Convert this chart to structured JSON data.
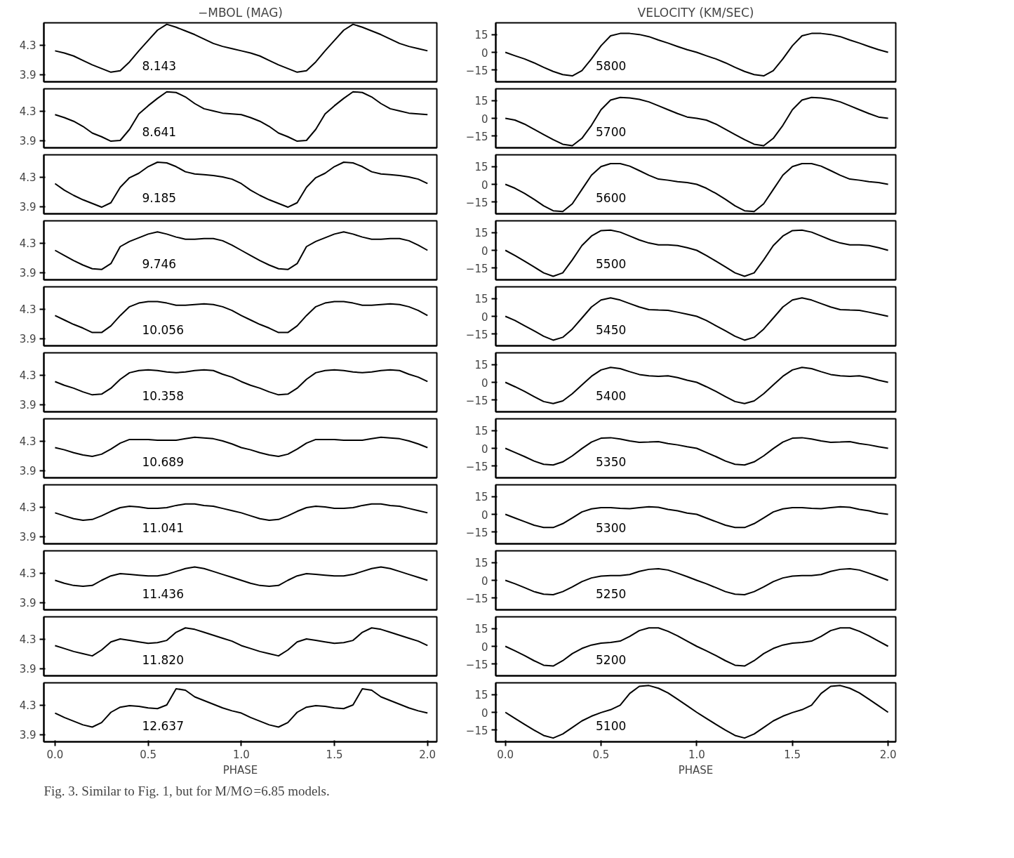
{
  "chart_data": [
    {
      "type": "line",
      "title": "−MBOL (MAG)",
      "x": [
        0,
        0.05,
        0.1,
        0.15,
        0.2,
        0.25,
        0.3,
        0.35,
        0.4,
        0.45,
        0.5,
        0.55,
        0.6,
        0.65,
        0.7,
        0.75,
        0.8,
        0.85,
        0.9,
        0.95,
        1,
        1.05,
        1.1,
        1.15,
        1.2,
        1.25,
        1.3,
        1.35,
        1.4,
        1.45,
        1.5,
        1.55,
        1.6,
        1.65,
        1.7,
        1.75,
        1.8,
        1.85,
        1.9,
        1.95,
        2
      ],
      "series": [
        {
          "name": "8.143",
          "color": "#000000",
          "values": [
            4.22,
            4.19,
            4.15,
            4.09,
            4.03,
            3.98,
            3.93,
            3.95,
            4.07,
            4.22,
            4.36,
            4.5,
            4.58,
            4.54,
            4.49,
            4.44,
            4.38,
            4.32,
            4.28,
            4.25,
            4.22,
            4.19,
            4.15,
            4.09,
            4.03,
            3.98,
            3.93,
            3.95,
            4.07,
            4.22,
            4.36,
            4.5,
            4.58,
            4.54,
            4.49,
            4.44,
            4.38,
            4.32,
            4.28,
            4.25,
            4.22
          ]
        }
      ],
      "xlim": [
        -0.06,
        2.05
      ],
      "ylim": [
        3.8,
        4.6
      ],
      "yticks": [
        3.9,
        4.3
      ],
      "tick_labels": "y"
    },
    {
      "type": "line",
      "x": [
        0,
        0.05,
        0.1,
        0.15,
        0.2,
        0.25,
        0.3,
        0.35,
        0.4,
        0.45,
        0.5,
        0.55,
        0.6,
        0.65,
        0.7,
        0.75,
        0.8,
        0.85,
        0.9,
        0.95,
        1,
        1.05,
        1.1,
        1.15,
        1.2,
        1.25,
        1.3,
        1.35,
        1.4,
        1.45,
        1.5,
        1.55,
        1.6,
        1.65,
        1.7,
        1.75,
        1.8,
        1.85,
        1.9,
        1.95,
        2
      ],
      "series": [
        {
          "name": "8.641",
          "color": "#000000",
          "values": [
            4.25,
            4.21,
            4.16,
            4.09,
            4.0,
            3.95,
            3.89,
            3.9,
            4.05,
            4.26,
            4.37,
            4.47,
            4.56,
            4.55,
            4.49,
            4.4,
            4.33,
            4.3,
            4.27,
            4.26,
            4.25,
            4.21,
            4.16,
            4.09,
            4.0,
            3.95,
            3.89,
            3.9,
            4.05,
            4.26,
            4.37,
            4.47,
            4.56,
            4.55,
            4.49,
            4.4,
            4.33,
            4.3,
            4.27,
            4.26,
            4.25
          ]
        }
      ],
      "xlim": [
        -0.06,
        2.05
      ],
      "ylim": [
        3.8,
        4.6
      ],
      "yticks": [
        3.9,
        4.3
      ],
      "tick_labels": "y"
    },
    {
      "type": "line",
      "x": [
        0,
        0.05,
        0.1,
        0.15,
        0.2,
        0.25,
        0.3,
        0.35,
        0.4,
        0.45,
        0.5,
        0.55,
        0.6,
        0.65,
        0.7,
        0.75,
        0.8,
        0.85,
        0.9,
        0.95,
        1,
        1.05,
        1.1,
        1.15,
        1.2,
        1.25,
        1.3,
        1.35,
        1.4,
        1.45,
        1.5,
        1.55,
        1.6,
        1.65,
        1.7,
        1.75,
        1.8,
        1.85,
        1.9,
        1.95,
        2
      ],
      "series": [
        {
          "name": "9.185",
          "color": "#000000",
          "values": [
            4.21,
            4.12,
            4.05,
            3.99,
            3.94,
            3.89,
            3.95,
            4.16,
            4.29,
            4.35,
            4.44,
            4.5,
            4.49,
            4.44,
            4.37,
            4.34,
            4.33,
            4.32,
            4.3,
            4.27,
            4.21,
            4.12,
            4.05,
            3.99,
            3.94,
            3.89,
            3.95,
            4.16,
            4.29,
            4.35,
            4.44,
            4.5,
            4.49,
            4.44,
            4.37,
            4.34,
            4.33,
            4.32,
            4.3,
            4.27,
            4.21
          ]
        }
      ],
      "xlim": [
        -0.06,
        2.05
      ],
      "ylim": [
        3.8,
        4.6
      ],
      "yticks": [
        3.9,
        4.3
      ],
      "tick_labels": "y"
    },
    {
      "type": "line",
      "x": [
        0,
        0.05,
        0.1,
        0.15,
        0.2,
        0.25,
        0.3,
        0.35,
        0.4,
        0.45,
        0.5,
        0.55,
        0.6,
        0.65,
        0.7,
        0.75,
        0.8,
        0.85,
        0.9,
        0.95,
        1,
        1.05,
        1.1,
        1.15,
        1.2,
        1.25,
        1.3,
        1.35,
        1.4,
        1.45,
        1.5,
        1.55,
        1.6,
        1.65,
        1.7,
        1.75,
        1.8,
        1.85,
        1.9,
        1.95,
        2
      ],
      "series": [
        {
          "name": "9.746",
          "color": "#000000",
          "values": [
            4.2,
            4.13,
            4.06,
            4.0,
            3.95,
            3.94,
            4.02,
            4.25,
            4.32,
            4.37,
            4.42,
            4.45,
            4.42,
            4.38,
            4.35,
            4.35,
            4.36,
            4.36,
            4.33,
            4.27,
            4.2,
            4.13,
            4.06,
            4.0,
            3.95,
            3.94,
            4.02,
            4.25,
            4.32,
            4.37,
            4.42,
            4.45,
            4.42,
            4.38,
            4.35,
            4.35,
            4.36,
            4.36,
            4.33,
            4.27,
            4.2
          ]
        }
      ],
      "xlim": [
        -0.06,
        2.05
      ],
      "ylim": [
        3.8,
        4.6
      ],
      "yticks": [
        3.9,
        4.3
      ],
      "tick_labels": "y"
    },
    {
      "type": "line",
      "x": [
        0,
        0.05,
        0.1,
        0.15,
        0.2,
        0.25,
        0.3,
        0.35,
        0.4,
        0.45,
        0.5,
        0.55,
        0.6,
        0.65,
        0.7,
        0.75,
        0.8,
        0.85,
        0.9,
        0.95,
        1,
        1.05,
        1.1,
        1.15,
        1.2,
        1.25,
        1.3,
        1.35,
        1.4,
        1.45,
        1.5,
        1.55,
        1.6,
        1.65,
        1.7,
        1.75,
        1.8,
        1.85,
        1.9,
        1.95,
        2
      ],
      "series": [
        {
          "name": "10.056",
          "color": "#000000",
          "values": [
            4.21,
            4.15,
            4.09,
            4.04,
            3.98,
            3.98,
            4.07,
            4.21,
            4.33,
            4.38,
            4.4,
            4.4,
            4.38,
            4.35,
            4.35,
            4.36,
            4.37,
            4.36,
            4.33,
            4.28,
            4.21,
            4.15,
            4.09,
            4.04,
            3.98,
            3.98,
            4.07,
            4.21,
            4.33,
            4.38,
            4.4,
            4.4,
            4.38,
            4.35,
            4.35,
            4.36,
            4.37,
            4.36,
            4.33,
            4.28,
            4.21
          ]
        }
      ],
      "xlim": [
        -0.06,
        2.05
      ],
      "ylim": [
        3.8,
        4.6
      ],
      "yticks": [
        3.9,
        4.3
      ],
      "tick_labels": "y"
    },
    {
      "type": "line",
      "x": [
        0,
        0.05,
        0.1,
        0.15,
        0.2,
        0.25,
        0.3,
        0.35,
        0.4,
        0.45,
        0.5,
        0.55,
        0.6,
        0.65,
        0.7,
        0.75,
        0.8,
        0.85,
        0.9,
        0.95,
        1,
        1.05,
        1.1,
        1.15,
        1.2,
        1.25,
        1.3,
        1.35,
        1.4,
        1.45,
        1.5,
        1.55,
        1.6,
        1.65,
        1.7,
        1.75,
        1.8,
        1.85,
        1.9,
        1.95,
        2
      ],
      "series": [
        {
          "name": "10.358",
          "color": "#000000",
          "values": [
            4.21,
            4.16,
            4.12,
            4.07,
            4.03,
            4.04,
            4.12,
            4.24,
            4.33,
            4.36,
            4.37,
            4.36,
            4.34,
            4.33,
            4.34,
            4.36,
            4.37,
            4.36,
            4.31,
            4.27,
            4.21,
            4.16,
            4.12,
            4.07,
            4.03,
            4.04,
            4.12,
            4.24,
            4.33,
            4.36,
            4.37,
            4.36,
            4.34,
            4.33,
            4.34,
            4.36,
            4.37,
            4.36,
            4.31,
            4.27,
            4.21
          ]
        }
      ],
      "xlim": [
        -0.06,
        2.05
      ],
      "ylim": [
        3.8,
        4.6
      ],
      "yticks": [
        3.9,
        4.3
      ],
      "tick_labels": "y"
    },
    {
      "type": "line",
      "x": [
        0,
        0.05,
        0.1,
        0.15,
        0.2,
        0.25,
        0.3,
        0.35,
        0.4,
        0.45,
        0.5,
        0.55,
        0.6,
        0.65,
        0.7,
        0.75,
        0.8,
        0.85,
        0.9,
        0.95,
        1,
        1.05,
        1.1,
        1.15,
        1.2,
        1.25,
        1.3,
        1.35,
        1.4,
        1.45,
        1.5,
        1.55,
        1.6,
        1.65,
        1.7,
        1.75,
        1.8,
        1.85,
        1.9,
        1.95,
        2
      ],
      "series": [
        {
          "name": "10.689",
          "color": "#000000",
          "values": [
            4.21,
            4.18,
            4.14,
            4.11,
            4.09,
            4.12,
            4.19,
            4.27,
            4.32,
            4.32,
            4.32,
            4.31,
            4.31,
            4.31,
            4.33,
            4.35,
            4.34,
            4.33,
            4.3,
            4.26,
            4.21,
            4.18,
            4.14,
            4.11,
            4.09,
            4.12,
            4.19,
            4.27,
            4.32,
            4.32,
            4.32,
            4.31,
            4.31,
            4.31,
            4.33,
            4.35,
            4.34,
            4.33,
            4.3,
            4.26,
            4.21
          ]
        }
      ],
      "xlim": [
        -0.06,
        2.05
      ],
      "ylim": [
        3.8,
        4.6
      ],
      "yticks": [
        3.9,
        4.3
      ],
      "tick_labels": "y"
    },
    {
      "type": "line",
      "x": [
        0,
        0.05,
        0.1,
        0.15,
        0.2,
        0.25,
        0.3,
        0.35,
        0.4,
        0.45,
        0.5,
        0.55,
        0.6,
        0.65,
        0.7,
        0.75,
        0.8,
        0.85,
        0.9,
        0.95,
        1,
        1.05,
        1.1,
        1.15,
        1.2,
        1.25,
        1.3,
        1.35,
        1.4,
        1.45,
        1.5,
        1.55,
        1.6,
        1.65,
        1.7,
        1.75,
        1.8,
        1.85,
        1.9,
        1.95,
        2
      ],
      "series": [
        {
          "name": "11.041",
          "color": "#000000",
          "values": [
            4.22,
            4.18,
            4.14,
            4.12,
            4.13,
            4.18,
            4.24,
            4.29,
            4.31,
            4.3,
            4.28,
            4.28,
            4.29,
            4.32,
            4.34,
            4.34,
            4.32,
            4.31,
            4.28,
            4.25,
            4.22,
            4.18,
            4.14,
            4.12,
            4.13,
            4.18,
            4.24,
            4.29,
            4.31,
            4.3,
            4.28,
            4.28,
            4.29,
            4.32,
            4.34,
            4.34,
            4.32,
            4.31,
            4.28,
            4.25,
            4.22
          ]
        }
      ],
      "xlim": [
        -0.06,
        2.05
      ],
      "ylim": [
        3.8,
        4.6
      ],
      "yticks": [
        3.9,
        4.3
      ],
      "tick_labels": "y"
    },
    {
      "type": "line",
      "x": [
        0,
        0.05,
        0.1,
        0.15,
        0.2,
        0.25,
        0.3,
        0.35,
        0.4,
        0.45,
        0.5,
        0.55,
        0.6,
        0.65,
        0.7,
        0.75,
        0.8,
        0.85,
        0.9,
        0.95,
        1,
        1.05,
        1.1,
        1.15,
        1.2,
        1.25,
        1.3,
        1.35,
        1.4,
        1.45,
        1.5,
        1.55,
        1.6,
        1.65,
        1.7,
        1.75,
        1.8,
        1.85,
        1.9,
        1.95,
        2
      ],
      "series": [
        {
          "name": "11.436",
          "color": "#000000",
          "values": [
            4.2,
            4.16,
            4.13,
            4.12,
            4.13,
            4.2,
            4.26,
            4.29,
            4.28,
            4.27,
            4.26,
            4.26,
            4.28,
            4.32,
            4.36,
            4.38,
            4.36,
            4.32,
            4.28,
            4.24,
            4.2,
            4.16,
            4.13,
            4.12,
            4.13,
            4.2,
            4.26,
            4.29,
            4.28,
            4.27,
            4.26,
            4.26,
            4.28,
            4.32,
            4.36,
            4.38,
            4.36,
            4.32,
            4.28,
            4.24,
            4.2
          ]
        }
      ],
      "xlim": [
        -0.06,
        2.05
      ],
      "ylim": [
        3.8,
        4.6
      ],
      "yticks": [
        3.9,
        4.3
      ],
      "tick_labels": "y"
    },
    {
      "type": "line",
      "x": [
        0,
        0.05,
        0.1,
        0.15,
        0.2,
        0.25,
        0.3,
        0.35,
        0.4,
        0.45,
        0.5,
        0.55,
        0.6,
        0.65,
        0.7,
        0.75,
        0.8,
        0.85,
        0.9,
        0.95,
        1,
        1.05,
        1.1,
        1.15,
        1.2,
        1.25,
        1.3,
        1.35,
        1.4,
        1.45,
        1.5,
        1.55,
        1.6,
        1.65,
        1.7,
        1.75,
        1.8,
        1.85,
        1.9,
        1.95,
        2
      ],
      "series": [
        {
          "name": "11.820",
          "color": "#000000",
          "values": [
            4.21,
            4.17,
            4.13,
            4.1,
            4.07,
            4.15,
            4.26,
            4.3,
            4.28,
            4.26,
            4.24,
            4.25,
            4.28,
            4.39,
            4.45,
            4.43,
            4.39,
            4.35,
            4.31,
            4.27,
            4.21,
            4.17,
            4.13,
            4.1,
            4.07,
            4.15,
            4.26,
            4.3,
            4.28,
            4.26,
            4.24,
            4.25,
            4.28,
            4.39,
            4.45,
            4.43,
            4.39,
            4.35,
            4.31,
            4.27,
            4.21
          ]
        }
      ],
      "xlim": [
        -0.06,
        2.05
      ],
      "ylim": [
        3.8,
        4.6
      ],
      "yticks": [
        3.9,
        4.3
      ],
      "tick_labels": "y"
    },
    {
      "type": "line",
      "xlabel": "PHASE",
      "annotations": [
        "Fig. 3. Similar to Fig. 1, but for M/M⊙=6.85 models."
      ],
      "x": [
        0,
        0.05,
        0.1,
        0.15,
        0.2,
        0.25,
        0.3,
        0.35,
        0.4,
        0.45,
        0.5,
        0.55,
        0.6,
        0.65,
        0.7,
        0.75,
        0.8,
        0.85,
        0.9,
        0.95,
        1,
        1.05,
        1.1,
        1.15,
        1.2,
        1.25,
        1.3,
        1.35,
        1.4,
        1.45,
        1.5,
        1.55,
        1.6,
        1.65,
        1.7,
        1.75,
        1.8,
        1.85,
        1.9,
        1.95,
        2
      ],
      "series": [
        {
          "name": "12.637",
          "color": "#000000",
          "values": [
            4.19,
            4.13,
            4.08,
            4.03,
            4.0,
            4.06,
            4.2,
            4.27,
            4.29,
            4.28,
            4.26,
            4.25,
            4.3,
            4.52,
            4.5,
            4.41,
            4.36,
            4.31,
            4.26,
            4.22,
            4.19,
            4.13,
            4.08,
            4.03,
            4.0,
            4.06,
            4.2,
            4.27,
            4.29,
            4.28,
            4.26,
            4.25,
            4.3,
            4.52,
            4.5,
            4.41,
            4.36,
            4.31,
            4.26,
            4.22,
            4.19
          ]
        }
      ],
      "xlim": [
        -0.06,
        2.05
      ],
      "xticks": [
        {
          "value": 0,
          "label": "0.0"
        },
        {
          "value": 0.5,
          "label": "0.5"
        },
        {
          "value": 1,
          "label": "1.0"
        },
        {
          "value": 1.5,
          "label": "1.5"
        },
        {
          "value": 2,
          "label": "2.0"
        }
      ],
      "ylim": [
        3.8,
        4.6
      ],
      "yticks": [
        3.9,
        4.3
      ]
    },
    {
      "type": "line",
      "title": "VELOCITY (KM/SEC)",
      "x": [
        0,
        0.05,
        0.1,
        0.15,
        0.2,
        0.25,
        0.3,
        0.35,
        0.4,
        0.45,
        0.5,
        0.55,
        0.6,
        0.65,
        0.7,
        0.75,
        0.8,
        0.85,
        0.9,
        0.95,
        1,
        1.05,
        1.1,
        1.15,
        1.2,
        1.25,
        1.3,
        1.35,
        1.4,
        1.45,
        1.5,
        1.55,
        1.6,
        1.65,
        1.7,
        1.75,
        1.8,
        1.85,
        1.9,
        1.95,
        2
      ],
      "series": [
        {
          "name": "5800",
          "color": "#000000",
          "values": [
            0,
            -2.9,
            -5.6,
            -8.9,
            -12.7,
            -16.2,
            -18.9,
            -20.0,
            -15.6,
            -5.6,
            5.6,
            14.0,
            16.0,
            16.0,
            15.1,
            13.3,
            10.4,
            7.8,
            4.9,
            2.2,
            0,
            -2.9,
            -5.6,
            -8.9,
            -12.7,
            -16.2,
            -18.9,
            -20.0,
            -15.6,
            -5.6,
            5.6,
            14.0,
            16.0,
            16.0,
            15.1,
            13.3,
            10.4,
            7.8,
            4.9,
            2.2,
            0
          ]
        }
      ],
      "xlim": [
        -0.05,
        2.04
      ],
      "ylim": [
        -25,
        25
      ],
      "yticks": [
        -15,
        0,
        15
      ],
      "tick_labels": "y"
    },
    {
      "type": "line",
      "x": [
        0,
        0.05,
        0.1,
        0.15,
        0.2,
        0.25,
        0.3,
        0.35,
        0.4,
        0.45,
        0.5,
        0.55,
        0.6,
        0.65,
        0.7,
        0.75,
        0.8,
        0.85,
        0.9,
        0.95,
        1,
        1.05,
        1.1,
        1.15,
        1.2,
        1.25,
        1.3,
        1.35,
        1.4,
        1.45,
        1.5,
        1.55,
        1.6,
        1.65,
        1.7,
        1.75,
        1.8,
        1.85,
        1.9,
        1.95,
        2
      ],
      "series": [
        {
          "name": "5700",
          "color": "#000000",
          "values": [
            0,
            -1.5,
            -4.9,
            -9.3,
            -13.7,
            -18.1,
            -22.0,
            -23.2,
            -17.0,
            -6.0,
            7.3,
            15.5,
            17.7,
            17.2,
            16.1,
            13.9,
            10.6,
            7.3,
            4.0,
            1.1,
            0,
            -1.5,
            -4.9,
            -9.3,
            -13.7,
            -18.1,
            -22.0,
            -23.2,
            -17.0,
            -6.0,
            7.3,
            15.5,
            17.7,
            17.2,
            16.1,
            13.9,
            10.6,
            7.3,
            4.0,
            1.1,
            0
          ]
        }
      ],
      "xlim": [
        -0.05,
        2.04
      ],
      "ylim": [
        -25,
        25
      ],
      "yticks": [
        -15,
        0,
        15
      ],
      "tick_labels": "y"
    },
    {
      "type": "line",
      "x": [
        0,
        0.05,
        0.1,
        0.15,
        0.2,
        0.25,
        0.3,
        0.35,
        0.4,
        0.45,
        0.5,
        0.55,
        0.6,
        0.65,
        0.7,
        0.75,
        0.8,
        0.85,
        0.9,
        0.95,
        1,
        1.05,
        1.1,
        1.15,
        1.2,
        1.25,
        1.3,
        1.35,
        1.4,
        1.45,
        1.5,
        1.55,
        1.6,
        1.65,
        1.7,
        1.75,
        1.8,
        1.85,
        1.9,
        1.95,
        2
      ],
      "series": [
        {
          "name": "5600",
          "color": "#000000",
          "values": [
            0,
            -3.3,
            -7.7,
            -12.7,
            -18.2,
            -22.4,
            -23.1,
            -16.5,
            -4.4,
            7.7,
            15.0,
            17.6,
            17.6,
            15.4,
            11.6,
            7.7,
            4.4,
            3.5,
            2.2,
            1.5,
            0,
            -3.3,
            -7.7,
            -12.7,
            -18.2,
            -22.4,
            -23.1,
            -16.5,
            -4.4,
            7.7,
            15.0,
            17.6,
            17.6,
            15.4,
            11.6,
            7.7,
            4.4,
            3.5,
            2.2,
            1.5,
            0
          ]
        }
      ],
      "xlim": [
        -0.05,
        2.04
      ],
      "ylim": [
        -25,
        25
      ],
      "yticks": [
        -15,
        0,
        15
      ],
      "tick_labels": "y"
    },
    {
      "type": "line",
      "x": [
        0,
        0.05,
        0.1,
        0.15,
        0.2,
        0.25,
        0.3,
        0.35,
        0.4,
        0.45,
        0.5,
        0.55,
        0.6,
        0.65,
        0.7,
        0.75,
        0.8,
        0.85,
        0.9,
        0.95,
        1,
        1.05,
        1.1,
        1.15,
        1.2,
        1.25,
        1.3,
        1.35,
        1.4,
        1.45,
        1.5,
        1.55,
        1.6,
        1.65,
        1.7,
        1.75,
        1.8,
        1.85,
        1.9,
        1.95,
        2
      ],
      "series": [
        {
          "name": "5500",
          "color": "#000000",
          "values": [
            0,
            -4.4,
            -9.2,
            -14.1,
            -19.1,
            -22.0,
            -19.1,
            -8.1,
            4.0,
            12.1,
            16.7,
            17.1,
            15.4,
            12.1,
            8.8,
            6.2,
            4.6,
            4.6,
            4.0,
            2.2,
            0,
            -4.4,
            -9.2,
            -14.1,
            -19.1,
            -22.0,
            -19.1,
            -8.1,
            4.0,
            12.1,
            16.7,
            17.1,
            15.4,
            12.1,
            8.8,
            6.2,
            4.6,
            4.6,
            4.0,
            2.2,
            0
          ]
        }
      ],
      "xlim": [
        -0.05,
        2.04
      ],
      "ylim": [
        -25,
        25
      ],
      "yticks": [
        -15,
        0,
        15
      ],
      "tick_labels": "y"
    },
    {
      "type": "line",
      "x": [
        0,
        0.05,
        0.1,
        0.15,
        0.2,
        0.25,
        0.3,
        0.35,
        0.4,
        0.45,
        0.5,
        0.55,
        0.6,
        0.65,
        0.7,
        0.75,
        0.8,
        0.85,
        0.9,
        0.95,
        1,
        1.05,
        1.1,
        1.15,
        1.2,
        1.25,
        1.3,
        1.35,
        1.4,
        1.45,
        1.5,
        1.55,
        1.6,
        1.65,
        1.7,
        1.75,
        1.8,
        1.85,
        1.9,
        1.95,
        2
      ],
      "series": [
        {
          "name": "5450",
          "color": "#000000",
          "values": [
            0,
            -3.5,
            -7.9,
            -12.3,
            -16.9,
            -20.2,
            -17.8,
            -10.8,
            -1.5,
            7.9,
            13.8,
            15.6,
            13.8,
            10.8,
            7.9,
            5.7,
            5.3,
            5.1,
            3.5,
            1.8,
            0,
            -3.5,
            -7.9,
            -12.3,
            -16.9,
            -20.2,
            -17.8,
            -10.8,
            -1.5,
            7.9,
            13.8,
            15.6,
            13.8,
            10.8,
            7.9,
            5.7,
            5.3,
            5.1,
            3.5,
            1.8,
            0
          ]
        }
      ],
      "xlim": [
        -0.05,
        2.04
      ],
      "ylim": [
        -25,
        25
      ],
      "yticks": [
        -15,
        0,
        15
      ],
      "tick_labels": "y"
    },
    {
      "type": "line",
      "x": [
        0,
        0.05,
        0.1,
        0.15,
        0.2,
        0.25,
        0.3,
        0.35,
        0.4,
        0.45,
        0.5,
        0.55,
        0.6,
        0.65,
        0.7,
        0.75,
        0.8,
        0.85,
        0.9,
        0.95,
        1,
        1.05,
        1.1,
        1.15,
        1.2,
        1.25,
        1.3,
        1.35,
        1.4,
        1.45,
        1.5,
        1.55,
        1.6,
        1.65,
        1.7,
        1.75,
        1.8,
        1.85,
        1.9,
        1.95,
        2
      ],
      "series": [
        {
          "name": "5400",
          "color": "#000000",
          "values": [
            0,
            -3.7,
            -7.7,
            -12.1,
            -16.3,
            -18.0,
            -15.8,
            -9.7,
            -2.2,
            5.1,
            10.5,
            12.7,
            11.6,
            9.0,
            6.6,
            5.5,
            5.1,
            5.5,
            4.0,
            1.8,
            0,
            -3.7,
            -7.7,
            -12.1,
            -16.3,
            -18.0,
            -15.8,
            -9.7,
            -2.2,
            5.1,
            10.5,
            12.7,
            11.6,
            9.0,
            6.6,
            5.5,
            5.1,
            5.5,
            4.0,
            1.8,
            0
          ]
        }
      ],
      "xlim": [
        -0.05,
        2.04
      ],
      "ylim": [
        -25,
        25
      ],
      "yticks": [
        -15,
        0,
        15
      ],
      "tick_labels": "y"
    },
    {
      "type": "line",
      "x": [
        0,
        0.05,
        0.1,
        0.15,
        0.2,
        0.25,
        0.3,
        0.35,
        0.4,
        0.45,
        0.5,
        0.55,
        0.6,
        0.65,
        0.7,
        0.75,
        0.8,
        0.85,
        0.9,
        0.95,
        1,
        1.05,
        1.1,
        1.15,
        1.2,
        1.25,
        1.3,
        1.35,
        1.4,
        1.45,
        1.5,
        1.55,
        1.6,
        1.65,
        1.7,
        1.75,
        1.8,
        1.85,
        1.9,
        1.95,
        2
      ],
      "series": [
        {
          "name": "5350",
          "color": "#000000",
          "values": [
            0,
            -3.5,
            -7.0,
            -10.8,
            -13.5,
            -14.1,
            -11.5,
            -6.4,
            -0.2,
            5.3,
            8.6,
            9.0,
            7.9,
            6.2,
            5.1,
            5.3,
            5.7,
            4.0,
            2.9,
            1.3,
            0,
            -3.5,
            -7.0,
            -10.8,
            -13.5,
            -14.1,
            -11.5,
            -6.4,
            -0.2,
            5.3,
            8.6,
            9.0,
            7.9,
            6.2,
            5.1,
            5.3,
            5.7,
            4.0,
            2.9,
            1.3,
            0
          ]
        }
      ],
      "xlim": [
        -0.05,
        2.04
      ],
      "ylim": [
        -25,
        25
      ],
      "yticks": [
        -15,
        0,
        15
      ],
      "tick_labels": "y"
    },
    {
      "type": "line",
      "x": [
        0,
        0.05,
        0.1,
        0.15,
        0.2,
        0.25,
        0.3,
        0.35,
        0.4,
        0.45,
        0.5,
        0.55,
        0.6,
        0.65,
        0.7,
        0.75,
        0.8,
        0.85,
        0.9,
        0.95,
        1,
        1.05,
        1.1,
        1.15,
        1.2,
        1.25,
        1.3,
        1.35,
        1.4,
        1.45,
        1.5,
        1.55,
        1.6,
        1.65,
        1.7,
        1.75,
        1.8,
        1.85,
        1.9,
        1.95,
        2
      ],
      "series": [
        {
          "name": "5300",
          "color": "#000000",
          "values": [
            0,
            -3.1,
            -6.2,
            -9.2,
            -11.2,
            -11.2,
            -7.9,
            -3.1,
            2.0,
            4.6,
            5.7,
            5.7,
            5.1,
            4.8,
            5.7,
            6.4,
            5.9,
            4.2,
            3.0,
            1.0,
            0,
            -3.1,
            -6.2,
            -9.2,
            -11.2,
            -11.2,
            -7.9,
            -3.1,
            2.0,
            4.6,
            5.7,
            5.7,
            5.1,
            4.8,
            5.7,
            6.4,
            5.9,
            4.2,
            3.0,
            1.0,
            0
          ]
        }
      ],
      "xlim": [
        -0.05,
        2.04
      ],
      "ylim": [
        -25,
        25
      ],
      "yticks": [
        -15,
        0,
        15
      ],
      "tick_labels": "y"
    },
    {
      "type": "line",
      "x": [
        0,
        0.05,
        0.1,
        0.15,
        0.2,
        0.25,
        0.3,
        0.35,
        0.4,
        0.45,
        0.5,
        0.55,
        0.6,
        0.65,
        0.7,
        0.75,
        0.8,
        0.85,
        0.9,
        0.95,
        1,
        1.05,
        1.1,
        1.15,
        1.2,
        1.25,
        1.3,
        1.35,
        1.4,
        1.45,
        1.5,
        1.55,
        1.6,
        1.65,
        1.7,
        1.75,
        1.8,
        1.85,
        1.9,
        1.95,
        2
      ],
      "series": [
        {
          "name": "5250",
          "color": "#000000",
          "values": [
            0,
            -2.9,
            -6.2,
            -9.6,
            -11.8,
            -12.2,
            -9.6,
            -5.6,
            -1.1,
            2.0,
            3.6,
            4.0,
            4.0,
            4.9,
            7.6,
            9.3,
            9.8,
            8.7,
            6.0,
            3.1,
            0,
            -2.9,
            -6.2,
            -9.6,
            -11.8,
            -12.2,
            -9.6,
            -5.6,
            -1.1,
            2.0,
            3.6,
            4.0,
            4.0,
            4.9,
            7.6,
            9.3,
            9.8,
            8.7,
            6.0,
            3.1,
            0
          ]
        }
      ],
      "xlim": [
        -0.05,
        2.04
      ],
      "ylim": [
        -25,
        25
      ],
      "yticks": [
        -15,
        0,
        15
      ],
      "tick_labels": "y"
    },
    {
      "type": "line",
      "x": [
        0,
        0.05,
        0.1,
        0.15,
        0.2,
        0.25,
        0.3,
        0.35,
        0.4,
        0.45,
        0.5,
        0.55,
        0.6,
        0.65,
        0.7,
        0.75,
        0.8,
        0.85,
        0.9,
        0.95,
        1,
        1.05,
        1.1,
        1.15,
        1.2,
        1.25,
        1.3,
        1.35,
        1.4,
        1.45,
        1.5,
        1.55,
        1.6,
        1.65,
        1.7,
        1.75,
        1.8,
        1.85,
        1.9,
        1.95,
        2
      ],
      "series": [
        {
          "name": "5200",
          "color": "#000000",
          "values": [
            0,
            -3.8,
            -7.8,
            -12.2,
            -16.0,
            -16.7,
            -12.2,
            -6.2,
            -1.8,
            1.1,
            2.7,
            3.3,
            4.4,
            8.4,
            13.3,
            15.6,
            15.6,
            12.7,
            8.9,
            4.4,
            0,
            -3.8,
            -7.8,
            -12.2,
            -16.0,
            -16.7,
            -12.2,
            -6.2,
            -1.8,
            1.1,
            2.7,
            3.3,
            4.4,
            8.4,
            13.3,
            15.6,
            15.6,
            12.7,
            8.9,
            4.4,
            0
          ]
        }
      ],
      "xlim": [
        -0.05,
        2.04
      ],
      "ylim": [
        -25,
        25
      ],
      "yticks": [
        -15,
        0,
        15
      ],
      "tick_labels": "y"
    },
    {
      "type": "line",
      "xlabel": "PHASE",
      "x": [
        0,
        0.05,
        0.1,
        0.15,
        0.2,
        0.25,
        0.3,
        0.35,
        0.4,
        0.45,
        0.5,
        0.55,
        0.6,
        0.65,
        0.7,
        0.75,
        0.8,
        0.85,
        0.9,
        0.95,
        1,
        1.05,
        1.1,
        1.15,
        1.2,
        1.25,
        1.3,
        1.35,
        1.4,
        1.45,
        1.5,
        1.55,
        1.6,
        1.65,
        1.7,
        1.75,
        1.8,
        1.85,
        1.9,
        1.95,
        2
      ],
      "series": [
        {
          "name": "5100",
          "color": "#000000",
          "values": [
            0,
            -5.1,
            -10.2,
            -15.1,
            -19.6,
            -21.8,
            -18.4,
            -12.9,
            -7.3,
            -3.3,
            -0.2,
            2.2,
            6.0,
            16.0,
            22.0,
            22.7,
            20.4,
            16.4,
            11.1,
            5.6,
            0,
            -5.1,
            -10.2,
            -15.1,
            -19.6,
            -21.8,
            -18.4,
            -12.9,
            -7.3,
            -3.3,
            -0.2,
            2.2,
            6.0,
            16.0,
            22.0,
            22.7,
            20.4,
            16.4,
            11.1,
            5.6,
            0
          ]
        }
      ],
      "xlim": [
        -0.05,
        2.04
      ],
      "xticks": [
        {
          "value": 0,
          "label": "0.0"
        },
        {
          "value": 0.5,
          "label": "0.5"
        },
        {
          "value": 1,
          "label": "1.0"
        },
        {
          "value": 1.5,
          "label": "1.5"
        },
        {
          "value": 2,
          "label": "2.0"
        }
      ],
      "ylim": [
        -25,
        25
      ],
      "yticks": [
        -15,
        0,
        15
      ]
    }
  ]
}
